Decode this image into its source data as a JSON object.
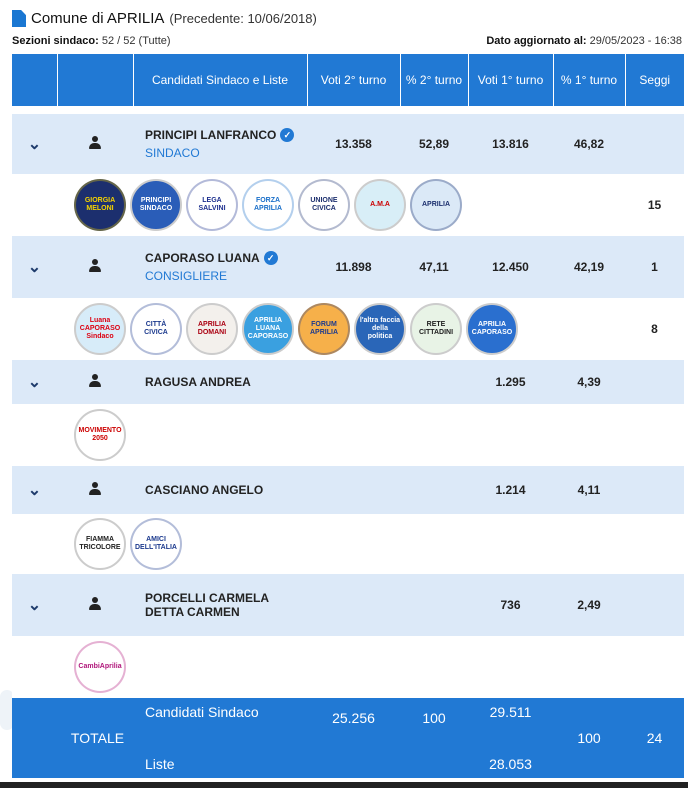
{
  "header": {
    "title": "Comune di APRILIA",
    "previous": "(Precedente: 10/06/2018)",
    "sezioni_label": "Sezioni sindaco:",
    "sezioni_value": "52 / 52 (Tutte)",
    "updated_label": "Dato aggiornato al:",
    "updated_value": "29/05/2023 - 16:38"
  },
  "columns": [
    "Candidati Sindaco e Liste",
    "Voti 2° turno",
    "% 2° turno",
    "Voti 1° turno",
    "% 1° turno",
    "Seggi"
  ],
  "candidates": [
    {
      "name": "PRINCIPI LANFRANCO",
      "role": "SINDACO",
      "verified": true,
      "voti2": "13.358",
      "pct2": "52,89",
      "voti1": "13.816",
      "pct1": "46,82",
      "seggi": "",
      "list_seggi": "15",
      "logos": [
        {
          "text": "GIORGIA MELONI",
          "bg": "#1c2f6e",
          "fg": "#f5d300"
        },
        {
          "text": "PRINCIPI SINDACO",
          "bg": "#2a5db8",
          "fg": "#fff"
        },
        {
          "text": "LEGA SALVINI",
          "bg": "#fff",
          "fg": "#1c2f8e"
        },
        {
          "text": "FORZA APRILIA",
          "bg": "#fff",
          "fg": "#1a6fc9"
        },
        {
          "text": "UNIONE CIVICA",
          "bg": "#fff",
          "fg": "#1c2f6e"
        },
        {
          "text": "A.M.A",
          "bg": "#d8eef7",
          "fg": "#c00"
        },
        {
          "text": "APRILIA",
          "bg": "#dbe9f7",
          "fg": "#1c2f6e"
        }
      ]
    },
    {
      "name": "CAPORASO LUANA",
      "role": "CONSIGLIERE",
      "verified": true,
      "voti2": "11.898",
      "pct2": "47,11",
      "voti1": "12.450",
      "pct1": "42,19",
      "seggi": "1",
      "list_seggi": "8",
      "logos": [
        {
          "text": "Luana CAPORASO Sindaco",
          "bg": "#d7ecf9",
          "fg": "#d01"
        },
        {
          "text": "CITTÀ CIVICA",
          "bg": "#fff",
          "fg": "#1c3a8e"
        },
        {
          "text": "APRILIA DOMANI",
          "bg": "#f3f0ec",
          "fg": "#a01"
        },
        {
          "text": "APRILIA LUANA CAPORASO",
          "bg": "#3aa0e0",
          "fg": "#fff"
        },
        {
          "text": "FORUM APRILIA",
          "bg": "#f6b04a",
          "fg": "#1c3a8e"
        },
        {
          "text": "l'altra faccia della politica",
          "bg": "#2a66b8",
          "fg": "#fff"
        },
        {
          "text": "RETE CITTADINI",
          "bg": "#e8f3e6",
          "fg": "#222"
        },
        {
          "text": "APRILIA CAPORASO",
          "bg": "#2a6fcf",
          "fg": "#fff"
        }
      ]
    },
    {
      "name": "RAGUSA ANDREA",
      "role": "",
      "verified": false,
      "voti2": "",
      "pct2": "",
      "voti1": "1.295",
      "pct1": "4,39",
      "seggi": "",
      "list_seggi": "",
      "logos": [
        {
          "text": "MOVIMENTO 2050",
          "bg": "#fff",
          "fg": "#c00"
        }
      ]
    },
    {
      "name": "CASCIANO ANGELO",
      "role": "",
      "verified": false,
      "voti2": "",
      "pct2": "",
      "voti1": "1.214",
      "pct1": "4,11",
      "seggi": "",
      "list_seggi": "",
      "logos": [
        {
          "text": "FIAMMA TRICOLORE",
          "bg": "#fff",
          "fg": "#222"
        },
        {
          "text": "AMICI DELL'ITALIA",
          "bg": "#fff",
          "fg": "#1c3a8e"
        }
      ]
    },
    {
      "name": "PORCELLI CARMELA DETTA CARMEN",
      "role": "",
      "verified": false,
      "voti2": "",
      "pct2": "",
      "voti1": "736",
      "pct1": "2,49",
      "seggi": "",
      "list_seggi": "",
      "logos": [
        {
          "text": "CambiAprilia",
          "bg": "#fff",
          "fg": "#b0157a"
        }
      ]
    }
  ],
  "totale": {
    "label": "TOTALE",
    "sindaco_label": "Candidati Sindaco",
    "sindaco_voti2": "25.256",
    "sindaco_pct2": "100",
    "sindaco_voti1": "29.511",
    "liste_label": "Liste",
    "liste_voti1": "28.053",
    "pct1": "100",
    "seggi": "24"
  }
}
